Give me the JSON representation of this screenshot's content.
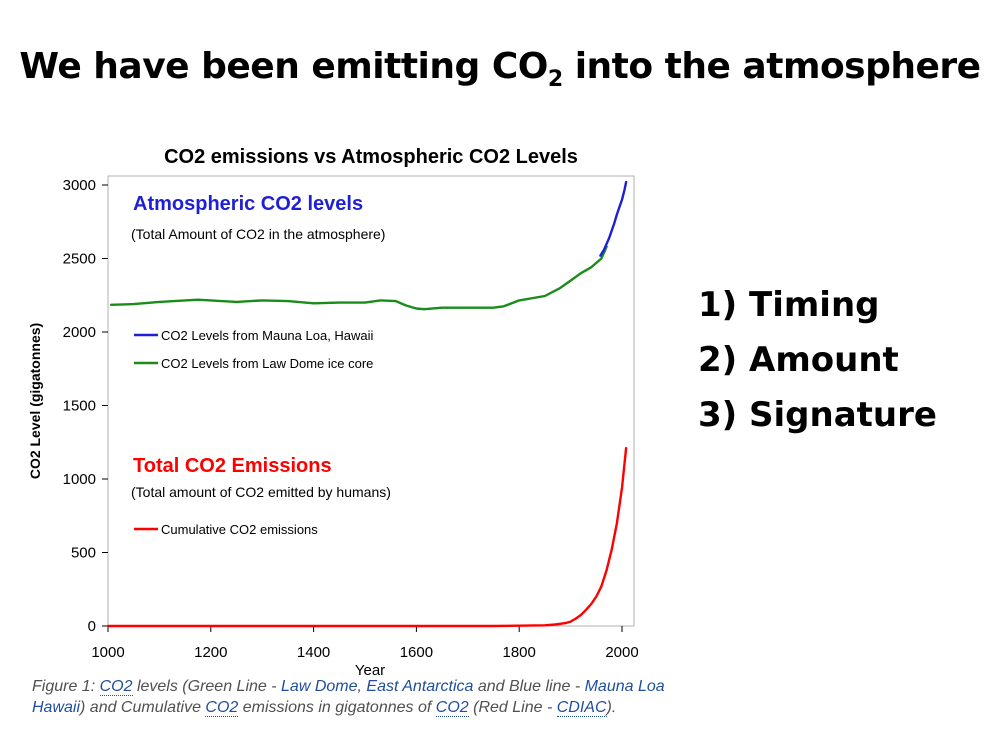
{
  "slide": {
    "title_before": "We have been emitting CO",
    "title_sub": "2",
    "title_after": " into the atmosphere",
    "points": [
      "1) Timing",
      "2) Amount",
      "3) Signature"
    ]
  },
  "caption": {
    "p1": "Figure 1: ",
    "l1": "CO2",
    "p2": " levels (Green Line - ",
    "l2": "Law Dome",
    "p3": ", ",
    "l3": "East Antarctica",
    "p4": " and Blue line - ",
    "l4": "Mauna Loa",
    "l5": "Hawaii",
    "p5": ") and Cumulative ",
    "l6": "CO2",
    "p6": " emissions in gigatonnes of ",
    "l7": "CO2",
    "p7": " (Red Line - ",
    "l8": "CDIAC",
    "p8": ")."
  },
  "chart_data": {
    "type": "line",
    "title": "CO2 emissions vs Atmospheric CO2 Levels",
    "xlabel": "Year",
    "ylabel": "CO2 Level (gigatonnes)",
    "xlim": [
      1000,
      2010
    ],
    "ylim": [
      0,
      3000
    ],
    "xticks": [
      1000,
      1200,
      1400,
      1600,
      1800,
      2000
    ],
    "yticks": [
      0,
      500,
      1000,
      1500,
      2000,
      2500,
      3000
    ],
    "grid": false,
    "colors": {
      "mauna_loa": "#1f1fd6",
      "law_dome": "#1a8c1a",
      "emissions": "#ff0000"
    },
    "series": [
      {
        "name": "CO2 Levels from Law Dome ice core",
        "color": "#1a8c1a",
        "x": [
          1006,
          1050,
          1100,
          1150,
          1175,
          1200,
          1250,
          1300,
          1350,
          1400,
          1450,
          1500,
          1530,
          1560,
          1580,
          1600,
          1615,
          1650,
          1700,
          1750,
          1770,
          1800,
          1850,
          1880,
          1900,
          1920,
          1940,
          1950,
          1960,
          1970
        ],
        "y": [
          2185,
          2190,
          2205,
          2215,
          2220,
          2215,
          2205,
          2215,
          2210,
          2195,
          2200,
          2200,
          2215,
          2210,
          2180,
          2160,
          2155,
          2165,
          2165,
          2165,
          2175,
          2215,
          2245,
          2300,
          2350,
          2400,
          2440,
          2470,
          2500,
          2580
        ]
      },
      {
        "name": "CO2 Levels from Mauna Loa, Hawaii",
        "color": "#1f1fd6",
        "x": [
          1958,
          1965,
          1970,
          1975,
          1980,
          1985,
          1990,
          1995,
          2000,
          2005,
          2008
        ],
        "y": [
          2520,
          2560,
          2600,
          2640,
          2690,
          2740,
          2800,
          2850,
          2900,
          2970,
          3020
        ]
      },
      {
        "name": "Cumulative CO2 emissions",
        "color": "#ff0000",
        "x": [
          1000,
          1750,
          1850,
          1870,
          1880,
          1890,
          1900,
          1910,
          1920,
          1930,
          1940,
          1950,
          1960,
          1970,
          1980,
          1990,
          2000,
          2008
        ],
        "y": [
          0,
          0,
          5,
          10,
          15,
          20,
          30,
          50,
          75,
          110,
          150,
          200,
          270,
          380,
          520,
          700,
          940,
          1210
        ]
      }
    ],
    "annotations": {
      "top_heading": "Atmospheric CO2 levels",
      "top_sub": "(Total Amount of CO2 in the atmosphere)",
      "bottom_heading": "Total CO2 Emissions",
      "bottom_sub": "(Total amount of CO2 emitted by humans)"
    },
    "legend_placement": "left, inside plot",
    "legend": [
      {
        "label": "CO2 Levels from Mauna Loa, Hawaii",
        "series": 1
      },
      {
        "label": "CO2 Levels from Law Dome ice core",
        "series": 0
      },
      {
        "label": "Cumulative CO2 emissions",
        "series": 2
      }
    ]
  }
}
